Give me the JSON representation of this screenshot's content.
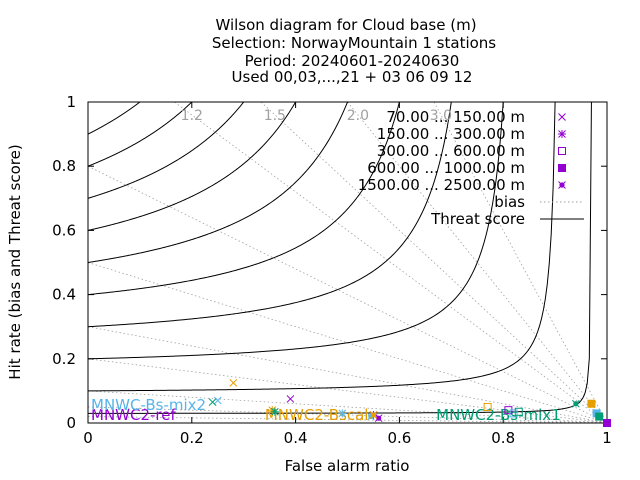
{
  "chart_data": {
    "type": "scatter",
    "title_lines": [
      "Wilson diagram  for Cloud base (m)",
      "Selection: NorwayMountain      1 stations",
      "Period: 20240601-20240630",
      "Used 00,03,...,21 + 03 06 09 12"
    ],
    "xlabel": "False alarm ratio",
    "ylabel": "Hit rate (bias and Threat score)",
    "xlim": [
      0,
      1
    ],
    "ylim": [
      0,
      1
    ],
    "xticks": [
      "0",
      "0.2",
      "0.4",
      "0.6",
      "0.8",
      "1"
    ],
    "yticks": [
      "0",
      "0.2",
      "0.4",
      "0.6",
      "0.8",
      "1"
    ],
    "bias_values": [
      1.2,
      1.5,
      2.0,
      3.0,
      0.8,
      0.5,
      0.3,
      0.2,
      0.1,
      0.05,
      0.02
    ],
    "bias_labels": [
      {
        "text": "1.2",
        "x": 0.2,
        "y": 0.96
      },
      {
        "text": "1.5",
        "x": 0.36,
        "y": 0.96
      },
      {
        "text": "2.0",
        "x": 0.52,
        "y": 0.96
      },
      {
        "text": "3.0",
        "x": 0.68,
        "y": 0.96
      }
    ],
    "threat_values": [
      0.03,
      0.1,
      0.2,
      0.3,
      0.4,
      0.5,
      0.6,
      0.7,
      0.8,
      0.9
    ],
    "legend": [
      {
        "label": "70.00 ... 150.00 m",
        "marker": "x",
        "color": "#9400d3"
      },
      {
        "label": "150.00 ... 300.00 m",
        "marker": "star",
        "color": "#9400d3"
      },
      {
        "label": "300.00 ... 600.00 m",
        "marker": "square-open",
        "color": "#9400d3"
      },
      {
        "label": "600.00 ... 1000.00 m",
        "marker": "square-filled",
        "color": "#9400d3"
      },
      {
        "label": "1500.00 ... 2500.00 m",
        "marker": "dot-star",
        "color": "#9400d3"
      },
      {
        "label": "bias",
        "marker": "dotted-line",
        "color": "#a0a0a0"
      },
      {
        "label": "Threat score",
        "marker": "solid-line",
        "color": "#000000"
      }
    ],
    "series": [
      {
        "name": "MNWC2-ref",
        "color": "#9400d3",
        "label_pos": {
          "x": 0.0,
          "y": 0.01
        },
        "points": [
          {
            "x": 0.39,
            "y": 0.075,
            "marker": "x"
          },
          {
            "x": 0.55,
            "y": 0.025,
            "marker": "star"
          },
          {
            "x": 0.81,
            "y": 0.04,
            "marker": "square-open"
          },
          {
            "x": 1.0,
            "y": 0.0,
            "marker": "square-filled"
          },
          {
            "x": 0.56,
            "y": 0.015,
            "marker": "dot-star"
          }
        ]
      },
      {
        "name": "MNWC-Bs-mix2",
        "color": "#56b4e9",
        "label_pos": {
          "x": 0.0,
          "y": 0.04
        },
        "points": [
          {
            "x": 0.25,
            "y": 0.07,
            "marker": "x"
          },
          {
            "x": 0.49,
            "y": 0.03,
            "marker": "star"
          },
          {
            "x": 0.82,
            "y": 0.03,
            "marker": "square-open"
          },
          {
            "x": 0.98,
            "y": 0.03,
            "marker": "square-filled"
          },
          {
            "x": 0.545,
            "y": 0.02,
            "marker": "dot-star"
          }
        ]
      },
      {
        "name": "MNWC2-Bscal",
        "color": "#e69f00",
        "label_pos": {
          "x": 0.335,
          "y": 0.01
        },
        "points": [
          {
            "x": 0.28,
            "y": 0.125,
            "marker": "x"
          },
          {
            "x": 0.355,
            "y": 0.04,
            "marker": "star"
          },
          {
            "x": 0.77,
            "y": 0.05,
            "marker": "square-open"
          },
          {
            "x": 0.97,
            "y": 0.06,
            "marker": "square-filled"
          },
          {
            "x": 0.55,
            "y": 0.025,
            "marker": "dot-star"
          }
        ]
      },
      {
        "name": "MNWC2-Bs-mix1",
        "color": "#009e73",
        "label_pos": {
          "x": 0.665,
          "y": 0.01
        },
        "points": [
          {
            "x": 0.24,
            "y": 0.065,
            "marker": "x"
          },
          {
            "x": 0.36,
            "y": 0.035,
            "marker": "star"
          },
          {
            "x": 0.83,
            "y": 0.035,
            "marker": "square-open"
          },
          {
            "x": 0.985,
            "y": 0.02,
            "marker": "square-filled"
          },
          {
            "x": 0.94,
            "y": 0.06,
            "marker": "dot-star"
          }
        ]
      }
    ]
  }
}
